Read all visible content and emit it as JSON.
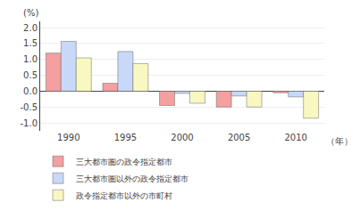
{
  "chart_data": {
    "type": "bar",
    "categories": [
      "1990",
      "1995",
      "2000",
      "2005",
      "2010"
    ],
    "series": [
      {
        "name": "三大都市圏の政令指定都市",
        "color": "#f4a0a0",
        "values": [
          1.2,
          0.25,
          -0.45,
          -0.5,
          -0.05
        ]
      },
      {
        "name": "三大都市圏以外の政令指定都市",
        "color": "#c8d8f8",
        "values": [
          1.57,
          1.25,
          -0.07,
          -0.15,
          -0.18
        ]
      },
      {
        "name": "政令指定都市以外の市町村",
        "color": "#f8f8c0",
        "values": [
          1.05,
          0.87,
          -0.38,
          -0.5,
          -0.85
        ]
      }
    ],
    "xlabel": "（年）",
    "ylabel": "(%)",
    "ylim": [
      -1.25,
      2.2
    ],
    "yticks": [
      {
        "value": -1.0,
        "label": "-1.0"
      },
      {
        "value": -0.5,
        "label": "-0.5"
      },
      {
        "value": 0.0,
        "label": "0.0"
      },
      {
        "value": 0.5,
        "label": "0.5"
      },
      {
        "value": 1.0,
        "label": "1.0"
      },
      {
        "value": 1.5,
        "label": "1.5"
      },
      {
        "value": 2.0,
        "label": "2.0"
      }
    ],
    "grid": true,
    "legend": "bottom"
  }
}
